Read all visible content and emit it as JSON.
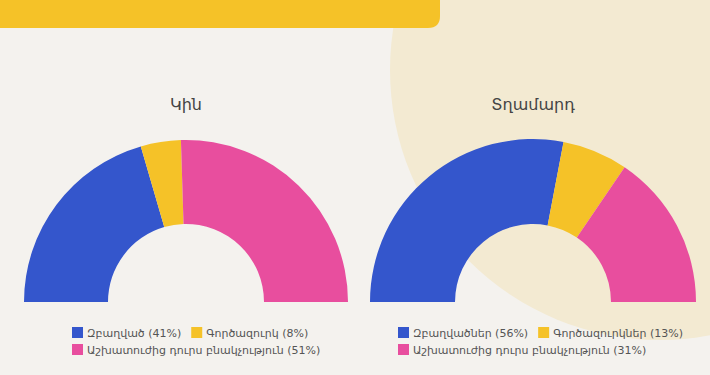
{
  "chart_data": [
    {
      "type": "pie",
      "title": "Կին",
      "categories": [
        "Զբաղված (41%)",
        "Գործազուրկ (8%)",
        "Աշխատուժից դուրս բնակչություն (51%)"
      ],
      "values": [
        41,
        8,
        51
      ],
      "colors": [
        "#3456cc",
        "#f5c228",
        "#e84e9e"
      ],
      "legend": "bottom"
    },
    {
      "type": "pie",
      "title": "Տղամարդ",
      "categories": [
        "Զբաղվածներ (56%)",
        "Գործազուրկներ (13%)",
        "Աշխատուժից դուրս բնակչություն (31%)"
      ],
      "values": [
        56,
        13,
        31
      ],
      "colors": [
        "#3456cc",
        "#f5c228",
        "#e84e9e"
      ],
      "legend": "bottom"
    }
  ]
}
